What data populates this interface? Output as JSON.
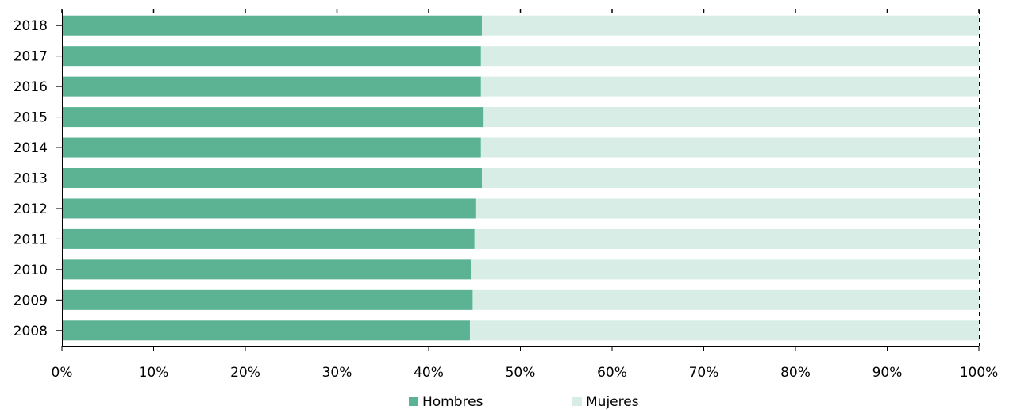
{
  "chart_data": {
    "type": "bar",
    "orientation": "horizontal",
    "stacked": true,
    "percent_scale": true,
    "categories": [
      "2018",
      "2017",
      "2016",
      "2015",
      "2014",
      "2013",
      "2012",
      "2011",
      "2010",
      "2009",
      "2008"
    ],
    "series": [
      {
        "name": "Hombres",
        "color": "#5bb394",
        "values": [
          45.8,
          45.7,
          45.7,
          46.0,
          45.7,
          45.8,
          45.1,
          45.0,
          44.6,
          44.8,
          44.5
        ]
      },
      {
        "name": "Mujeres",
        "color": "#d7ede5",
        "values": [
          54.2,
          54.3,
          54.3,
          54.0,
          54.3,
          54.2,
          54.9,
          55.0,
          55.4,
          55.2,
          55.5
        ]
      }
    ],
    "x_ticks": [
      "0%",
      "10%",
      "20%",
      "30%",
      "40%",
      "50%",
      "60%",
      "70%",
      "80%",
      "90%",
      "100%"
    ],
    "xlim": [
      0,
      100
    ],
    "title": "",
    "xlabel": "",
    "ylabel": "",
    "grid": false,
    "legend_position": "bottom"
  }
}
